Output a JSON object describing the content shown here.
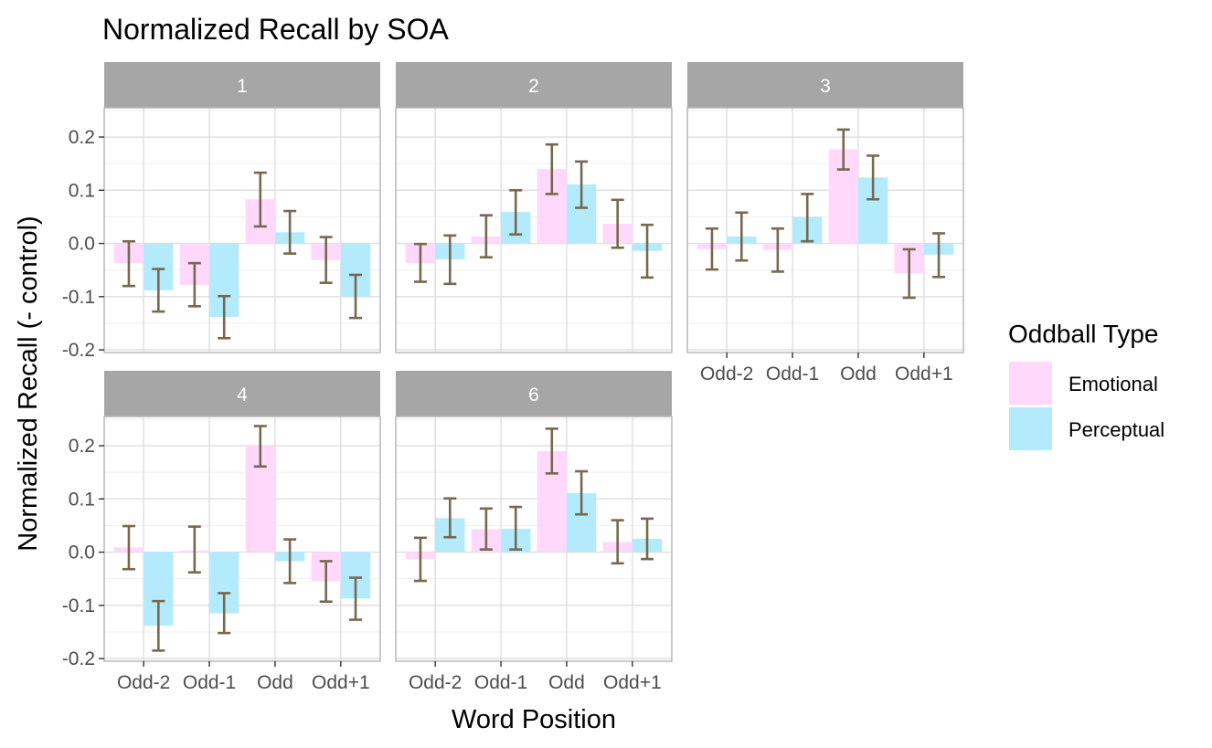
{
  "chart_data": {
    "type": "bar",
    "title": "Normalized Recall by SOA",
    "xlabel": "Word Position",
    "ylabel": "Normalized Recall (- control)",
    "categories": [
      "Odd-2",
      "Odd-1",
      "Odd",
      "Odd+1"
    ],
    "ylim": [
      -0.205,
      0.255
    ],
    "yticks": [
      -0.2,
      -0.1,
      0.0,
      0.1,
      0.2
    ],
    "ytick_labels": [
      "-0.2",
      "-0.1",
      "0.0",
      "0.1",
      "0.2"
    ],
    "grid": true,
    "legend": {
      "title": "Oddball Type",
      "placement": "right",
      "entries": [
        "Emotional",
        "Perceptual"
      ]
    },
    "colors": {
      "Emotional": "#ffd8fb",
      "Perceptual": "#b3ebfc",
      "error_bar": "#76694f",
      "strip": "#a6a6a6"
    },
    "facets": [
      {
        "label": "1",
        "series": [
          {
            "name": "Emotional",
            "values": [
              -0.037,
              -0.078,
              0.083,
              -0.031
            ],
            "lower": [
              -0.08,
              -0.118,
              0.032,
              -0.074
            ],
            "upper": [
              0.004,
              -0.037,
              0.133,
              0.012
            ]
          },
          {
            "name": "Perceptual",
            "values": [
              -0.088,
              -0.138,
              0.021,
              -0.1
            ],
            "lower": [
              -0.128,
              -0.178,
              -0.019,
              -0.14
            ],
            "upper": [
              -0.048,
              -0.099,
              0.061,
              -0.059
            ]
          }
        ]
      },
      {
        "label": "2",
        "series": [
          {
            "name": "Emotional",
            "values": [
              -0.037,
              0.013,
              0.14,
              0.037
            ],
            "lower": [
              -0.072,
              -0.026,
              0.093,
              -0.008
            ],
            "upper": [
              -0.001,
              0.053,
              0.186,
              0.082
            ]
          },
          {
            "name": "Perceptual",
            "values": [
              -0.03,
              0.059,
              0.111,
              -0.014
            ],
            "lower": [
              -0.076,
              0.017,
              0.067,
              -0.064
            ],
            "upper": [
              0.015,
              0.1,
              0.154,
              0.035
            ]
          }
        ]
      },
      {
        "label": "3",
        "series": [
          {
            "name": "Emotional",
            "values": [
              -0.011,
              -0.012,
              0.177,
              -0.056
            ],
            "lower": [
              -0.049,
              -0.053,
              0.139,
              -0.102
            ],
            "upper": [
              0.028,
              0.028,
              0.214,
              -0.011
            ]
          },
          {
            "name": "Perceptual",
            "values": [
              0.013,
              0.05,
              0.124,
              -0.021
            ],
            "lower": [
              -0.032,
              0.004,
              0.083,
              -0.063
            ],
            "upper": [
              0.058,
              0.093,
              0.165,
              0.019
            ]
          }
        ]
      },
      {
        "label": "4",
        "series": [
          {
            "name": "Emotional",
            "values": [
              0.009,
              0.003,
              0.2,
              -0.055
            ],
            "lower": [
              -0.032,
              -0.038,
              0.161,
              -0.093
            ],
            "upper": [
              0.049,
              0.048,
              0.237,
              -0.017
            ]
          },
          {
            "name": "Perceptual",
            "values": [
              -0.138,
              -0.115,
              -0.017,
              -0.087
            ],
            "lower": [
              -0.185,
              -0.152,
              -0.058,
              -0.127
            ],
            "upper": [
              -0.092,
              -0.077,
              0.024,
              -0.048
            ]
          }
        ]
      },
      {
        "label": "6",
        "series": [
          {
            "name": "Emotional",
            "values": [
              -0.013,
              0.043,
              0.19,
              0.019
            ],
            "lower": [
              -0.054,
              0.005,
              0.148,
              -0.021
            ],
            "upper": [
              0.027,
              0.082,
              0.232,
              0.06
            ]
          },
          {
            "name": "Perceptual",
            "values": [
              0.064,
              0.044,
              0.111,
              0.025
            ],
            "lower": [
              0.028,
              0.005,
              0.071,
              -0.013
            ],
            "upper": [
              0.101,
              0.085,
              0.152,
              0.063
            ]
          }
        ]
      }
    ]
  }
}
